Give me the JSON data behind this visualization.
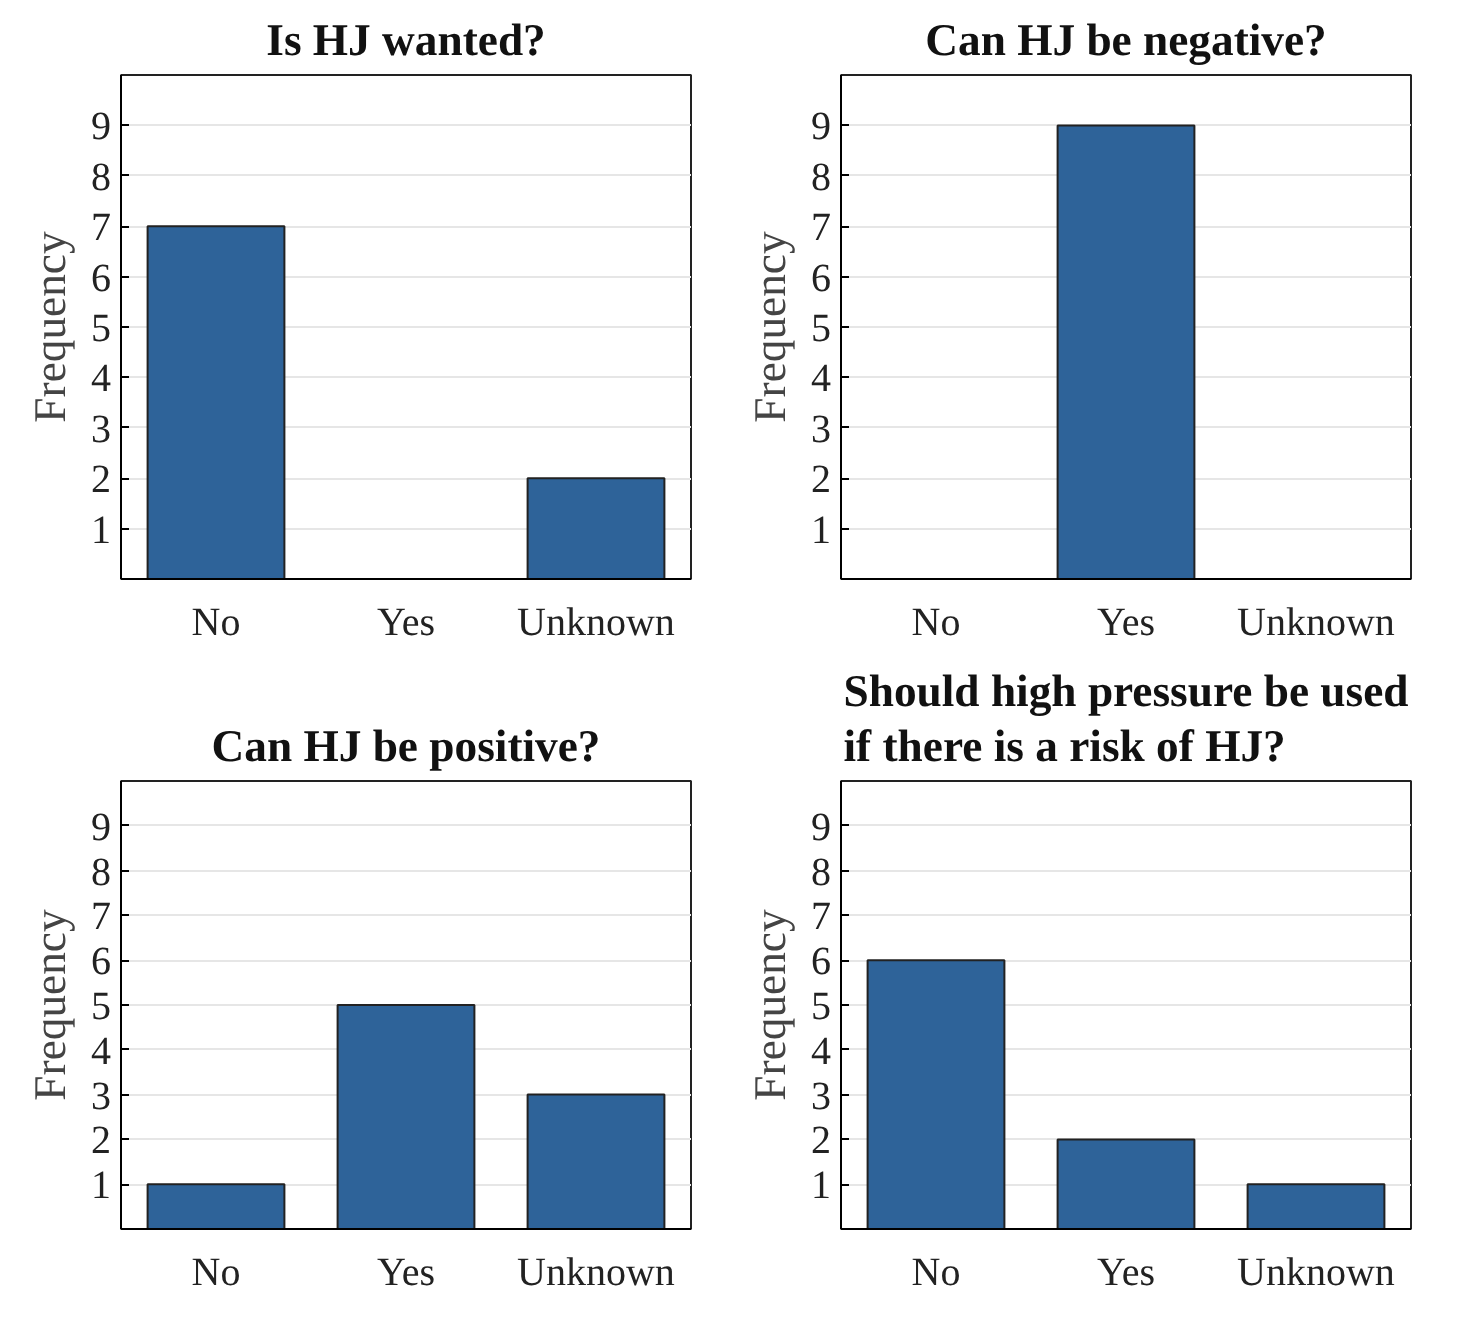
{
  "chart_data": [
    {
      "type": "bar",
      "title": "Is HJ wanted?",
      "ylabel": "Frequency",
      "categories": [
        "No",
        "Yes",
        "Unknown"
      ],
      "values": [
        7,
        0,
        2
      ],
      "color": "#2e6399",
      "ylim": [
        0,
        10
      ],
      "yticks": [
        1,
        2,
        3,
        4,
        5,
        6,
        7,
        8,
        9
      ],
      "grid": "y"
    },
    {
      "type": "bar",
      "title": "Can HJ be negative?",
      "ylabel": "Frequency",
      "categories": [
        "No",
        "Yes",
        "Unknown"
      ],
      "values": [
        0,
        9,
        0
      ],
      "color": "#2e6399",
      "ylim": [
        0,
        10
      ],
      "yticks": [
        1,
        2,
        3,
        4,
        5,
        6,
        7,
        8,
        9
      ],
      "grid": "y"
    },
    {
      "type": "bar",
      "title": "Can HJ be positive?",
      "ylabel": "Frequency",
      "categories": [
        "No",
        "Yes",
        "Unknown"
      ],
      "values": [
        1,
        5,
        3
      ],
      "color": "#2e6399",
      "ylim": [
        0,
        10
      ],
      "yticks": [
        1,
        2,
        3,
        4,
        5,
        6,
        7,
        8,
        9
      ],
      "grid": "y"
    },
    {
      "type": "bar",
      "title": "Should high pressure be used if there is a risk of HJ?",
      "ylabel": "Frequency",
      "categories": [
        "No",
        "Yes",
        "Unknown"
      ],
      "values": [
        6,
        2,
        1
      ],
      "color": "#2e6399",
      "ylim": [
        0,
        10
      ],
      "yticks": [
        1,
        2,
        3,
        4,
        5,
        6,
        7,
        8,
        9
      ],
      "grid": "y"
    }
  ]
}
